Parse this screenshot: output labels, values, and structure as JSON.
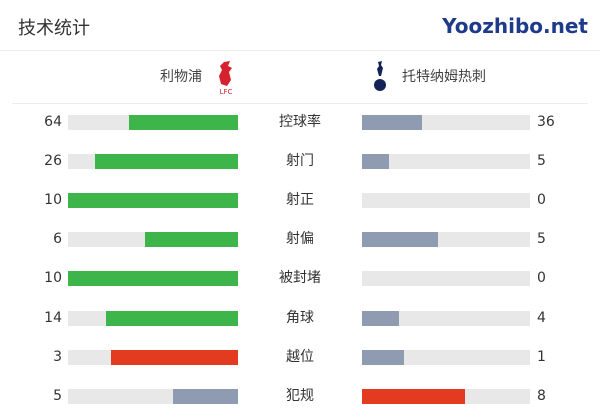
{
  "header": {
    "title": "技术统计"
  },
  "teams": {
    "home": {
      "name": "利物浦",
      "logo_text": "LFC",
      "logo_icon": "liverbird-crest-icon"
    },
    "away": {
      "name": "托特纳姆热刺",
      "logo_icon": "cockerel-crest-icon"
    }
  },
  "colors": {
    "green": "#3db54a",
    "grey": "#8f9bb0",
    "red": "#e23b1f",
    "track": "#e8e8e8"
  },
  "stats": [
    {
      "label": "控球率",
      "home": "64",
      "away": "36",
      "hv": 64,
      "av": 36,
      "hc": "#3db54a",
      "ac": "#8f9bb0"
    },
    {
      "label": "射门",
      "home": "26",
      "away": "5",
      "hv": 26,
      "av": 5,
      "hc": "#3db54a",
      "ac": "#8f9bb0"
    },
    {
      "label": "射正",
      "home": "10",
      "away": "0",
      "hv": 10,
      "av": 0,
      "hc": "#3db54a",
      "ac": "#8f9bb0"
    },
    {
      "label": "射偏",
      "home": "6",
      "away": "5",
      "hv": 6,
      "av": 5,
      "hc": "#3db54a",
      "ac": "#8f9bb0"
    },
    {
      "label": "被封堵",
      "home": "10",
      "away": "0",
      "hv": 10,
      "av": 0,
      "hc": "#3db54a",
      "ac": "#8f9bb0"
    },
    {
      "label": "角球",
      "home": "14",
      "away": "4",
      "hv": 14,
      "av": 4,
      "hc": "#3db54a",
      "ac": "#8f9bb0"
    },
    {
      "label": "越位",
      "home": "3",
      "away": "1",
      "hv": 3,
      "av": 1,
      "hc": "#e23b1f",
      "ac": "#8f9bb0"
    },
    {
      "label": "犯规",
      "home": "5",
      "away": "8",
      "hv": 5,
      "av": 8,
      "hc": "#8f9bb0",
      "ac": "#e23b1f"
    }
  ],
  "watermark": "Yoozhibo.net"
}
